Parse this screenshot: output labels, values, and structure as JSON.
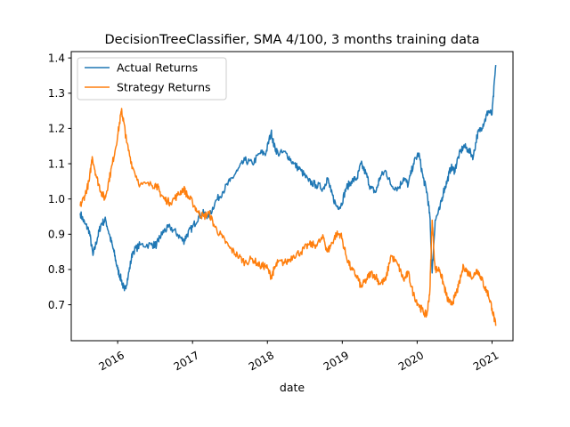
{
  "chart_data": {
    "type": "line",
    "title": "DecisionTreeClassifier, SMA 4/100, 3 months training data",
    "xlabel": "date",
    "ylabel": "",
    "xlim": [
      2015.38,
      2021.28
    ],
    "ylim": [
      0.598,
      1.418
    ],
    "x_ticks": [
      {
        "value": 2016,
        "label": "2016"
      },
      {
        "value": 2017,
        "label": "2017"
      },
      {
        "value": 2018,
        "label": "2018"
      },
      {
        "value": 2019,
        "label": "2019"
      },
      {
        "value": 2020,
        "label": "2020"
      },
      {
        "value": 2021,
        "label": "2021"
      }
    ],
    "y_ticks": [
      {
        "value": 0.7,
        "label": "0.7"
      },
      {
        "value": 0.8,
        "label": "0.8"
      },
      {
        "value": 0.9,
        "label": "0.9"
      },
      {
        "value": 1.0,
        "label": "1.0"
      },
      {
        "value": 1.1,
        "label": "1.1"
      },
      {
        "value": 1.2,
        "label": "1.2"
      },
      {
        "value": 1.3,
        "label": "1.3"
      },
      {
        "value": 1.4,
        "label": "1.4"
      }
    ],
    "legend_position": "top-left",
    "series": [
      {
        "name": "Actual Returns",
        "color": "#1f77b4",
        "x": [
          2015.5,
          2015.56,
          2015.62,
          2015.67,
          2015.73,
          2015.78,
          2015.84,
          2015.9,
          2015.95,
          2016.0,
          2016.05,
          2016.09,
          2016.14,
          2016.2,
          2016.3,
          2016.45,
          2016.52,
          2016.56,
          2016.62,
          2016.7,
          2016.8,
          2016.88,
          2016.93,
          2017.0,
          2017.08,
          2017.15,
          2017.22,
          2017.3,
          2017.4,
          2017.5,
          2017.6,
          2017.7,
          2017.8,
          2017.9,
          2017.98,
          2018.05,
          2018.09,
          2018.14,
          2018.25,
          2018.35,
          2018.45,
          2018.55,
          2018.65,
          2018.75,
          2018.8,
          2018.85,
          2018.92,
          2018.98,
          2019.05,
          2019.12,
          2019.2,
          2019.25,
          2019.32,
          2019.38,
          2019.45,
          2019.5,
          2019.58,
          2019.65,
          2019.75,
          2019.82,
          2019.88,
          2019.95,
          2020.02,
          2020.08,
          2020.13,
          2020.17,
          2020.2,
          2020.24,
          2020.3,
          2020.35,
          2020.4,
          2020.45,
          2020.5,
          2020.55,
          2020.62,
          2020.68,
          2020.75,
          2020.8,
          2020.85,
          2020.9,
          2020.95,
          2021.0,
          2021.05
        ],
        "y": [
          0.96,
          0.93,
          0.91,
          0.84,
          0.89,
          0.93,
          0.94,
          0.89,
          0.85,
          0.8,
          0.77,
          0.74,
          0.78,
          0.85,
          0.87,
          0.87,
          0.87,
          0.89,
          0.91,
          0.92,
          0.9,
          0.88,
          0.9,
          0.92,
          0.95,
          0.96,
          0.95,
          0.99,
          1.02,
          1.05,
          1.08,
          1.11,
          1.1,
          1.13,
          1.13,
          1.19,
          1.15,
          1.13,
          1.13,
          1.1,
          1.08,
          1.05,
          1.04,
          1.03,
          1.06,
          1.02,
          0.98,
          0.98,
          1.03,
          1.05,
          1.06,
          1.1,
          1.07,
          1.03,
          1.02,
          1.06,
          1.08,
          1.04,
          1.03,
          1.06,
          1.04,
          1.1,
          1.13,
          1.06,
          1.02,
          0.95,
          0.79,
          0.94,
          0.97,
          1.02,
          1.05,
          1.09,
          1.08,
          1.12,
          1.15,
          1.14,
          1.12,
          1.18,
          1.2,
          1.22,
          1.25,
          1.24,
          1.38
        ]
      },
      {
        "name": "Strategy Returns",
        "color": "#ff7f0e",
        "x": [
          2015.5,
          2015.56,
          2015.62,
          2015.66,
          2015.72,
          2015.78,
          2015.83,
          2015.88,
          2015.93,
          2016.0,
          2016.05,
          2016.08,
          2016.12,
          2016.2,
          2016.3,
          2016.45,
          2016.52,
          2016.56,
          2016.62,
          2016.7,
          2016.8,
          2016.88,
          2016.93,
          2017.0,
          2017.08,
          2017.15,
          2017.22,
          2017.3,
          2017.4,
          2017.5,
          2017.6,
          2017.7,
          2017.8,
          2017.9,
          2017.98,
          2018.05,
          2018.09,
          2018.14,
          2018.25,
          2018.35,
          2018.45,
          2018.55,
          2018.65,
          2018.75,
          2018.8,
          2018.85,
          2018.92,
          2018.98,
          2019.05,
          2019.12,
          2019.2,
          2019.25,
          2019.32,
          2019.38,
          2019.45,
          2019.5,
          2019.58,
          2019.65,
          2019.75,
          2019.82,
          2019.88,
          2019.95,
          2020.02,
          2020.08,
          2020.13,
          2020.17,
          2020.2,
          2020.24,
          2020.3,
          2020.35,
          2020.4,
          2020.45,
          2020.5,
          2020.55,
          2020.62,
          2020.68,
          2020.75,
          2020.8,
          2020.85,
          2020.9,
          2020.95,
          2021.0,
          2021.05
        ],
        "y": [
          0.98,
          1.01,
          1.05,
          1.12,
          1.06,
          1.02,
          1.0,
          1.05,
          1.1,
          1.18,
          1.25,
          1.22,
          1.16,
          1.09,
          1.04,
          1.04,
          1.04,
          1.02,
          1.0,
          0.99,
          1.01,
          1.03,
          1.01,
          0.99,
          0.96,
          0.95,
          0.96,
          0.92,
          0.89,
          0.86,
          0.84,
          0.82,
          0.83,
          0.81,
          0.81,
          0.78,
          0.8,
          0.82,
          0.82,
          0.84,
          0.85,
          0.87,
          0.87,
          0.89,
          0.85,
          0.87,
          0.9,
          0.9,
          0.84,
          0.8,
          0.78,
          0.75,
          0.77,
          0.79,
          0.78,
          0.76,
          0.77,
          0.84,
          0.81,
          0.77,
          0.79,
          0.73,
          0.7,
          0.68,
          0.67,
          0.74,
          0.94,
          0.8,
          0.8,
          0.76,
          0.72,
          0.7,
          0.72,
          0.75,
          0.81,
          0.79,
          0.78,
          0.8,
          0.78,
          0.75,
          0.73,
          0.69,
          0.64
        ]
      }
    ]
  }
}
